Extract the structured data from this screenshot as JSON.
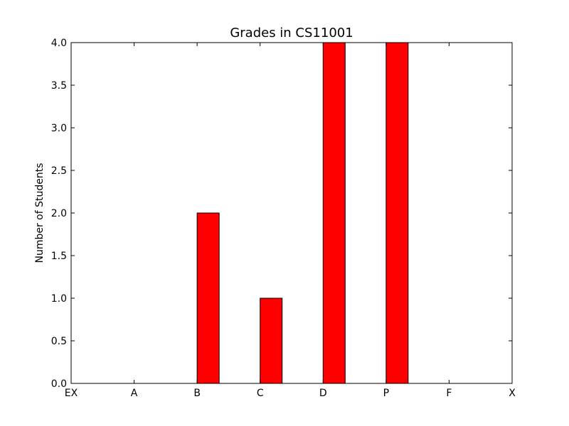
{
  "chart_data": {
    "type": "bar",
    "title": "Grades in CS11001",
    "xlabel": "",
    "ylabel": "Number of Students",
    "categories": [
      "EX",
      "A",
      "B",
      "C",
      "D",
      "P",
      "F",
      "X"
    ],
    "values": [
      0,
      0,
      2,
      1,
      4,
      4,
      0,
      0
    ],
    "ylim": [
      0,
      4.0
    ],
    "yticks": [
      "0.0",
      "0.5",
      "1.0",
      "1.5",
      "2.0",
      "2.5",
      "3.0",
      "3.5",
      "4.0"
    ],
    "grid": false,
    "bar_color": "#ff0000",
    "edge_color": "#000000"
  }
}
